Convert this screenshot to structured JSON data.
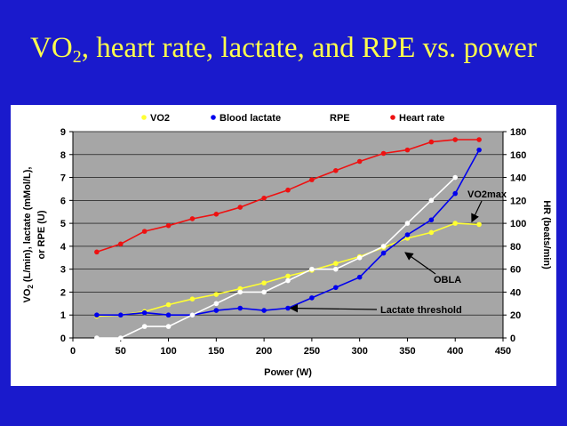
{
  "title": {
    "prefix": "VO",
    "sub": "2",
    "rest": ", heart rate, lactate, and RPE vs. power"
  },
  "chart_data": {
    "type": "scatter",
    "title": "VO2, heart rate, lactate, and RPE vs. power",
    "xlabel": "Power (W)",
    "ylabel_left": {
      "main": "VO",
      "sub": "2",
      "rest": " (L/min), lactate (mMol/L),",
      "line2": "or RPE (U)"
    },
    "ylabel_right": "HR (beats/min)",
    "xlim": [
      0,
      450
    ],
    "ylim_left": [
      0,
      9
    ],
    "ylim_right": [
      0,
      180
    ],
    "x_ticks": [
      "0",
      "50",
      "100",
      "150",
      "200",
      "250",
      "300",
      "350",
      "400",
      "450"
    ],
    "y_left_ticks": [
      "0",
      "1",
      "2",
      "3",
      "4",
      "5",
      "6",
      "7",
      "8",
      "9"
    ],
    "y_right_ticks": [
      "0",
      "20",
      "40",
      "60",
      "80",
      "100",
      "120",
      "140",
      "160",
      "180"
    ],
    "grid": true,
    "legend_position": "top",
    "series": [
      {
        "name": "VO2",
        "color": "#ffff33",
        "axis": "left",
        "x": [
          25,
          50,
          75,
          100,
          125,
          150,
          175,
          200,
          225,
          250,
          275,
          300,
          325,
          350,
          375,
          400,
          425
        ],
        "y": [
          0.95,
          1.0,
          1.15,
          1.45,
          1.7,
          1.9,
          2.15,
          2.4,
          2.7,
          2.95,
          3.25,
          3.55,
          3.95,
          4.35,
          4.6,
          5.0,
          4.95
        ]
      },
      {
        "name": "Blood lactate",
        "color": "#0000ee",
        "axis": "left",
        "x": [
          25,
          50,
          75,
          100,
          125,
          150,
          175,
          200,
          225,
          250,
          275,
          300,
          325,
          350,
          375,
          400,
          425
        ],
        "y": [
          1.0,
          1.0,
          1.1,
          1.0,
          1.0,
          1.2,
          1.3,
          1.2,
          1.3,
          1.75,
          2.2,
          2.65,
          3.7,
          4.5,
          5.15,
          6.3,
          8.2
        ]
      },
      {
        "name": "RPE",
        "color": "#ffffff",
        "axis": "left",
        "x": [
          25,
          50,
          75,
          100,
          125,
          150,
          175,
          200,
          225,
          250,
          275,
          300,
          325,
          350,
          375,
          400
        ],
        "y": [
          0.0,
          0.0,
          0.5,
          0.5,
          1.0,
          1.5,
          2.0,
          2.0,
          2.5,
          3.0,
          3.0,
          3.5,
          4.0,
          5.0,
          6.0,
          7.0
        ]
      },
      {
        "name": "Heart rate",
        "color": "#ee1111",
        "axis": "right",
        "x": [
          25,
          50,
          75,
          100,
          125,
          150,
          175,
          200,
          225,
          250,
          275,
          300,
          325,
          350,
          375,
          400,
          425
        ],
        "y": [
          75,
          82,
          93,
          98,
          104,
          108,
          114,
          122,
          129,
          138,
          146,
          154,
          161,
          164,
          171,
          173,
          173
        ]
      }
    ],
    "annotations": [
      {
        "text": "VO2max",
        "target_x": 410,
        "target_y": 5.0
      },
      {
        "text": "OBLA",
        "target_x": 345,
        "target_y": 3.8
      },
      {
        "text": "Lactate threshold",
        "target_x": 222,
        "target_y": 1.3
      }
    ]
  }
}
